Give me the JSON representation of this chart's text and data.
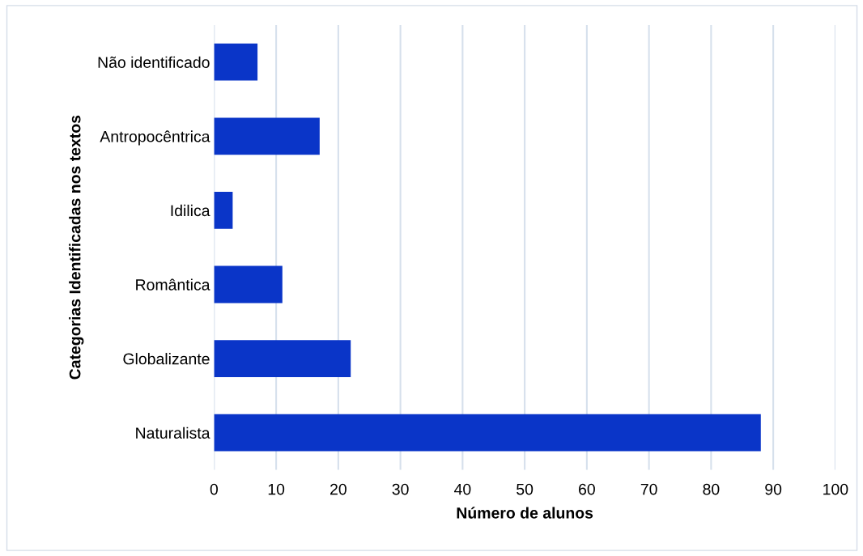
{
  "chart_data": {
    "type": "bar",
    "orientation": "horizontal",
    "xlabel": "Número de alunos",
    "ylabel": "Categorias Identificadas nos textos",
    "categories": [
      "Não identificado",
      "Antropocêntrica",
      "Idilica",
      "Romântica",
      "Globalizante",
      "Naturalista"
    ],
    "values": [
      7,
      17,
      3,
      11,
      22,
      88
    ],
    "color": "#0a35c8",
    "xlim": [
      0,
      100
    ],
    "xticks": [
      0,
      10,
      20,
      30,
      40,
      50,
      60,
      70,
      80,
      90,
      100
    ],
    "grid": "x",
    "legend": false
  }
}
